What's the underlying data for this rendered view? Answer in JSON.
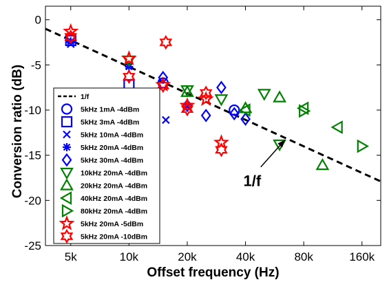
{
  "chart_data": {
    "type": "scatter",
    "xscale": "log2",
    "xlabel": "Offset frequency (Hz)",
    "ylabel": "Conversion ratio (dB)",
    "xlim": [
      3.7,
      200
    ],
    "ylim": [
      -25,
      1.5
    ],
    "xticks": [
      {
        "value": 5,
        "label": "5k"
      },
      {
        "value": 10,
        "label": "10k"
      },
      {
        "value": 20,
        "label": "20k"
      },
      {
        "value": 40,
        "label": "40k"
      },
      {
        "value": 80,
        "label": "80k"
      },
      {
        "value": 160,
        "label": "160k"
      }
    ],
    "yticks": [
      {
        "value": 0,
        "label": "0"
      },
      {
        "value": -5,
        "label": "-5"
      },
      {
        "value": -10,
        "label": "-10"
      },
      {
        "value": -15,
        "label": "-15"
      },
      {
        "value": -20,
        "label": "-20"
      },
      {
        "value": -25,
        "label": "-25"
      }
    ],
    "grid": false,
    "legend_position": "lower-left",
    "reference_line": {
      "name": "1/f",
      "x": [
        3.7,
        200
      ],
      "y": [
        -1.0,
        -17.9
      ],
      "color": "#000000"
    },
    "annotation": {
      "text": "1/f",
      "text_x": 39,
      "text_y": -18.4,
      "arrow_from": [
        48,
        -16.3
      ],
      "arrow_to": [
        64,
        -13.3
      ]
    },
    "series": [
      {
        "name": "5kHz 1mA -4dBm",
        "marker": "circle",
        "color": "#0000ff",
        "x": [
          5,
          15,
          35
        ],
        "y": [
          -2.1,
          -7.0,
          -10.0
        ]
      },
      {
        "name": "5kHz 3mA -4dBm",
        "marker": "square",
        "color": "#0000ff",
        "x": [
          5,
          10
        ],
        "y": [
          -2.3,
          -7.2
        ]
      },
      {
        "name": "5kHz 10mA -4dBm",
        "marker": "x",
        "color": "#0000ff",
        "x": [
          5,
          10,
          15.5,
          20
        ],
        "y": [
          -2.7,
          -5.1,
          -11.1,
          -9.6
        ]
      },
      {
        "name": "5kHz 20mA -4dBm",
        "marker": "asterisk",
        "color": "#0000ff",
        "x": [
          5,
          10
        ],
        "y": [
          -2.4,
          -5.2
        ]
      },
      {
        "name": "5kHz 30mA -4dBm",
        "marker": "diamond",
        "color": "#0000ff",
        "x": [
          15,
          20,
          25,
          30,
          35,
          40
        ],
        "y": [
          -6.4,
          -9.5,
          -10.6,
          -7.5,
          -10.4,
          -11.0
        ]
      },
      {
        "name": "10kHz 20mA -4dBm",
        "marker": "triangle-down",
        "color": "#008000",
        "x": [
          10,
          20,
          30,
          50,
          60
        ],
        "y": [
          -4.5,
          -7.8,
          -8.8,
          -8.2,
          -13.8
        ]
      },
      {
        "name": "20kHz 20mA -4dBm",
        "marker": "triangle-up",
        "color": "#008000",
        "x": [
          20,
          40,
          60,
          100
        ],
        "y": [
          -8.0,
          -9.8,
          -8.6,
          -16.1
        ]
      },
      {
        "name": "40kHz 20mA -4dBm",
        "marker": "triangle-left",
        "color": "#008000",
        "x": [
          40,
          80,
          120
        ],
        "y": [
          -10.0,
          -9.8,
          -11.9
        ]
      },
      {
        "name": "80kHz 20mA -4dBm",
        "marker": "triangle-right",
        "color": "#008000",
        "x": [
          80,
          160
        ],
        "y": [
          -10.1,
          -14.0
        ]
      },
      {
        "name": "5kHz 20mA -5dBm",
        "marker": "pentagram",
        "color": "#ff0000",
        "x": [
          5,
          10,
          15,
          20,
          25,
          30
        ],
        "y": [
          -1.3,
          -4.3,
          -7.2,
          -9.5,
          -8.8,
          -13.6
        ]
      },
      {
        "name": "5kHz 20mA -10dBm",
        "marker": "hexagram",
        "color": "#ff0000",
        "x": [
          5,
          10,
          15,
          15.5,
          20,
          25,
          30
        ],
        "y": [
          -1.9,
          -6.3,
          -7.3,
          -2.5,
          -9.9,
          -8.1,
          -14.4
        ]
      }
    ]
  }
}
